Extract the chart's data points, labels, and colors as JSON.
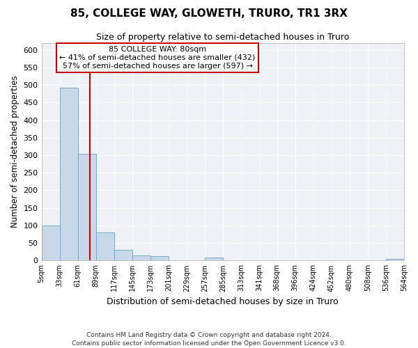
{
  "title": "85, COLLEGE WAY, GLOWETH, TRURO, TR1 3RX",
  "subtitle": "Size of property relative to semi-detached houses in Truro",
  "xlabel": "Distribution of semi-detached houses by size in Truro",
  "ylabel": "Number of semi-detached properties",
  "bin_edges": [
    5,
    33,
    61,
    89,
    117,
    145,
    173,
    201,
    229,
    257,
    285,
    313,
    341,
    368,
    396,
    424,
    452,
    480,
    508,
    536,
    564
  ],
  "bin_counts": [
    100,
    493,
    305,
    80,
    30,
    15,
    12,
    0,
    0,
    8,
    0,
    0,
    0,
    0,
    0,
    0,
    0,
    0,
    0,
    5
  ],
  "bar_color": "#c8d8e8",
  "bar_edge_color": "#7aaac8",
  "property_size": 80,
  "property_line_color": "#cc0000",
  "annotation_title": "85 COLLEGE WAY: 80sqm",
  "annotation_line1": "← 41% of semi-detached houses are smaller (432)",
  "annotation_line2": "57% of semi-detached houses are larger (597) →",
  "annotation_box_edge_color": "#cc0000",
  "ylim": [
    0,
    620
  ],
  "yticks": [
    0,
    50,
    100,
    150,
    200,
    250,
    300,
    350,
    400,
    450,
    500,
    550,
    600
  ],
  "footer_line1": "Contains HM Land Registry data © Crown copyright and database right 2024.",
  "footer_line2": "Contains public sector information licensed under the Open Government Licence v3.0.",
  "background_color": "#eef2f7",
  "grid_color": "#ffffff",
  "title_fontsize": 11,
  "subtitle_fontsize": 9
}
